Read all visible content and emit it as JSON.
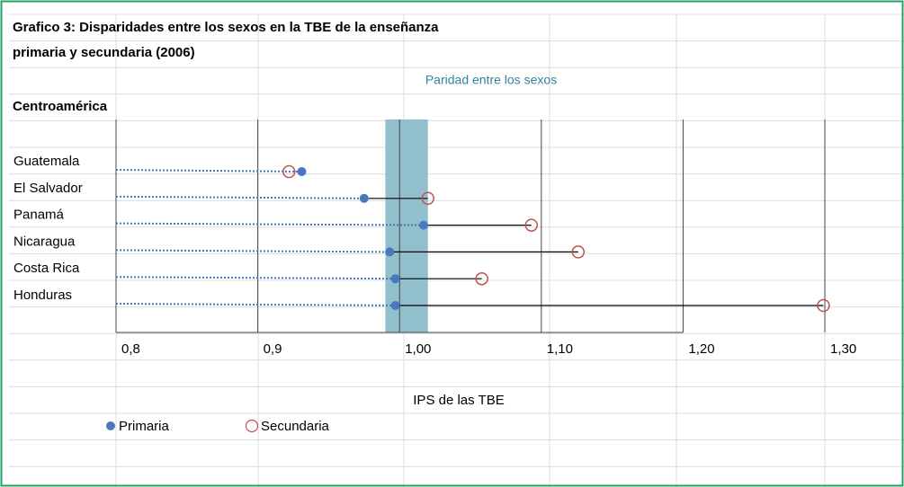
{
  "title_lines": [
    "Grafico 3: Disparidades entre los sexos  en la TBE de la enseñanza",
    "primaria y secundaria (2006)"
  ],
  "band_label": "Paridad entre los sexos",
  "region": "Centroamérica",
  "chart_data": {
    "type": "dumbbell",
    "x_label": "IPS de las TBE",
    "categories": [
      "Guatemala",
      "El Salvador",
      "Panamá",
      "Nicaragua",
      "Costa Rica",
      "Honduras"
    ],
    "series": [
      {
        "name": "Primaria",
        "color": "#4a78bd",
        "values": [
          0.931,
          0.975,
          1.017,
          0.993,
          0.997,
          0.997
        ]
      },
      {
        "name": "Secundaria",
        "color": "#c0504d",
        "values": [
          0.922,
          1.02,
          1.093,
          1.126,
          1.058,
          1.299
        ]
      }
    ],
    "parity_band": [
      0.99,
      1.02
    ],
    "band_color": "#92bfcc",
    "xlim": [
      0.8,
      1.3
    ],
    "xticks": [
      {
        "value": 0.8,
        "label": "0,8"
      },
      {
        "value": 0.9,
        "label": "0,9"
      },
      {
        "value": 1.0,
        "label": "1,00"
      },
      {
        "value": 1.1,
        "label": "1,10"
      },
      {
        "value": 1.2,
        "label": "1,20"
      },
      {
        "value": 1.3,
        "label": "1,30"
      }
    ]
  }
}
